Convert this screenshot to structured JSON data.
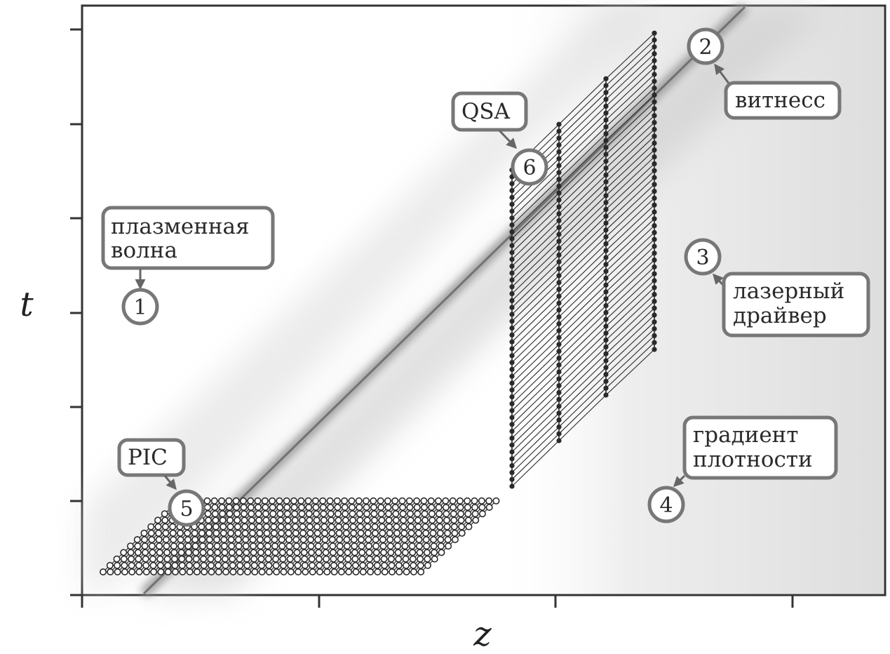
{
  "axes": {
    "xlabel": "z",
    "ylabel": "t"
  },
  "labels": {
    "wave": [
      "плазменная",
      "волна"
    ],
    "witness": "витнесс",
    "driver": [
      "лазерный",
      "драйвер"
    ],
    "gradient": [
      "градиент",
      "плотности"
    ],
    "pic": "PIC",
    "qsa": "QSA"
  },
  "markers": [
    "1",
    "2",
    "3",
    "4",
    "5",
    "6"
  ],
  "colors": {
    "ink": "#2a2a2a",
    "box_stroke": "#777777",
    "shade": "#8f8f8f"
  }
}
